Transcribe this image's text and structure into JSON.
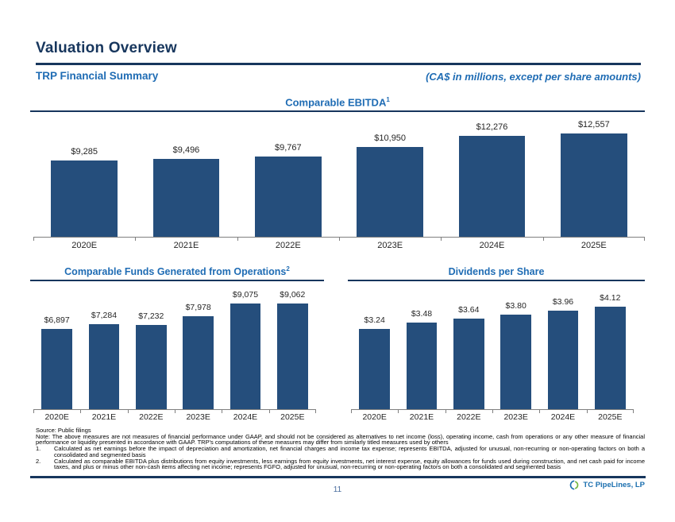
{
  "header": {
    "title": "Valuation Overview",
    "subtitle": "TRP Financial Summary",
    "units_note": "(CA$ in millions, except per share amounts)"
  },
  "chart_data": [
    {
      "type": "bar",
      "title": "Comparable EBITDA",
      "title_sup": "1",
      "categories": [
        "2020E",
        "2021E",
        "2022E",
        "2023E",
        "2024E",
        "2025E"
      ],
      "values": [
        9285,
        9496,
        9767,
        10950,
        12276,
        12557
      ],
      "value_labels": [
        "$9,285",
        "$9,496",
        "$9,767",
        "$10,950",
        "$12,276",
        "$12,557"
      ],
      "ylim": [
        0,
        14000
      ],
      "xlabel": "",
      "ylabel": "",
      "grid": false,
      "legend": "none"
    },
    {
      "type": "bar",
      "title": "Comparable Funds Generated from Operations",
      "title_sup": "2",
      "categories": [
        "2020E",
        "2021E",
        "2022E",
        "2023E",
        "2024E",
        "2025E"
      ],
      "values": [
        6897,
        7284,
        7232,
        7978,
        9075,
        9062
      ],
      "value_labels": [
        "$6,897",
        "$7,284",
        "$7,232",
        "$7,978",
        "$9,075",
        "$9,062"
      ],
      "ylim": [
        0,
        10000
      ],
      "xlabel": "",
      "ylabel": "",
      "grid": false,
      "legend": "none"
    },
    {
      "type": "bar",
      "title": "Dividends per Share",
      "title_sup": "",
      "categories": [
        "2020E",
        "2021E",
        "2022E",
        "2023E",
        "2024E",
        "2025E"
      ],
      "values": [
        3.24,
        3.48,
        3.64,
        3.8,
        3.96,
        4.12
      ],
      "value_labels": [
        "$3.24",
        "$3.48",
        "$3.64",
        "$3.80",
        "$3.96",
        "$4.12"
      ],
      "ylim": [
        0,
        4.7
      ],
      "xlabel": "",
      "ylabel": "",
      "grid": false,
      "legend": "none"
    }
  ],
  "footer": {
    "source": "Source: Public filings",
    "note": "Note: The above measures are not measures of financial performance under GAAP, and should not be considered as alternatives to net income (loss), operating income, cash from operations or any other measure of financial performance or liquidity presented in accordance with GAAP. TRP's computations of these measures may differ from similarly titled measures used by others",
    "footnotes": [
      {
        "num": "1.",
        "text": "Calculated as net earnings before the impact of depreciation and amortization, net financial charges and income tax expense; represents EBITDA, adjusted for unusual, non-recurring or non-operating factors on both a consolidated and segmented basis"
      },
      {
        "num": "2.",
        "text": "Calculated as comparable EBITDA plus distributions from equity investments, less earnings from equity investments, net interest expense, equity allowances for funds used during construction, and net cash paid for income taxes, and plus or minus other non-cash items affecting net income; represents FGFO, adjusted for unusual, non-recurring or non-operating factors on both a consolidated and segmented basis"
      }
    ],
    "page_number": "11",
    "logo_text": "TC PipeLines, LP"
  },
  "colors": {
    "bar": "#254E7C",
    "navy": "#17365D",
    "blue": "#1F6CB4",
    "axis": "#7F7F7F",
    "label": "#262626",
    "logo_blue": "#1B6FAF",
    "logo_green": "#72B740",
    "page_number": "#4A6D9E"
  }
}
